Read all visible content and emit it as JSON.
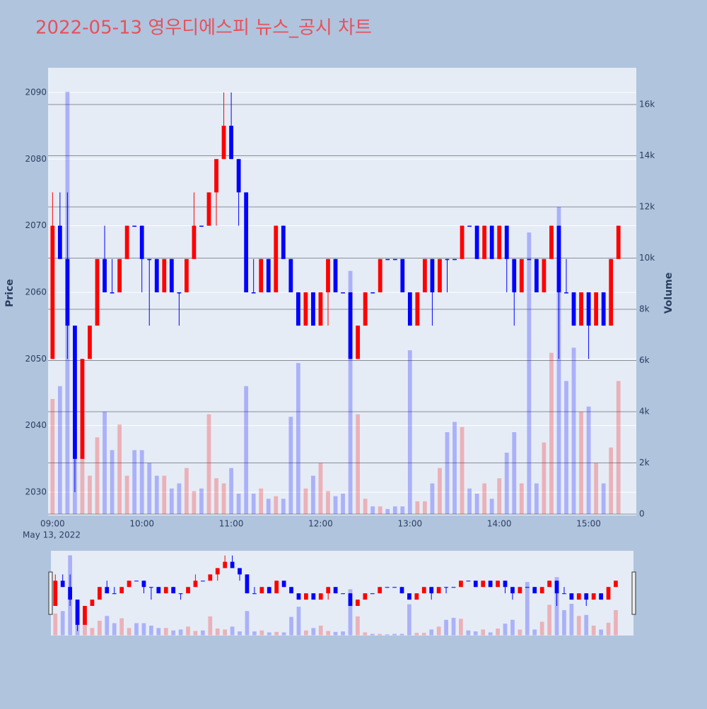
{
  "chart_data": {
    "type": "candlestick",
    "title": "2022-05-13 영우디에스피 뉴스_공시 차트",
    "ylabel": "Price",
    "y2label": "Volume",
    "date_label": "May 13, 2022",
    "increasing_color": "#ff0000",
    "decreasing_color": "#0000ff",
    "grid": true,
    "rangeslider": true,
    "x": [
      "09:00",
      "09:05",
      "09:10",
      "09:15",
      "09:20",
      "09:25",
      "09:30",
      "09:35",
      "09:40",
      "09:45",
      "09:50",
      "09:55",
      "10:00",
      "10:05",
      "10:10",
      "10:15",
      "10:20",
      "10:25",
      "10:30",
      "10:35",
      "10:40",
      "10:45",
      "10:50",
      "10:55",
      "11:00",
      "11:05",
      "11:10",
      "11:15",
      "11:20",
      "11:25",
      "11:30",
      "11:35",
      "11:40",
      "11:45",
      "11:50",
      "11:55",
      "12:00",
      "12:05",
      "12:10",
      "12:15",
      "12:20",
      "12:25",
      "12:30",
      "12:35",
      "12:40",
      "12:45",
      "12:50",
      "12:55",
      "13:00",
      "13:05",
      "13:10",
      "13:15",
      "13:20",
      "13:25",
      "13:30",
      "13:35",
      "13:40",
      "13:45",
      "13:50",
      "13:55",
      "14:00",
      "14:05",
      "14:10",
      "14:15",
      "14:20",
      "14:25",
      "14:30",
      "14:35",
      "14:40",
      "14:45",
      "14:50",
      "14:55",
      "15:00",
      "15:05",
      "15:10",
      "15:15",
      "15:20"
    ],
    "open": [
      2050,
      2070,
      2065,
      2055,
      2035,
      2050,
      2055,
      2065,
      2060,
      2060,
      2065,
      2070,
      2070,
      2065,
      2065,
      2060,
      2065,
      2060,
      2060,
      2065,
      2070,
      2070,
      2075,
      2080,
      2085,
      2080,
      2075,
      2060,
      2060,
      2065,
      2060,
      2070,
      2065,
      2060,
      2055,
      2060,
      2055,
      2060,
      2065,
      2060,
      2060,
      2050,
      2055,
      2060,
      2060,
      2065,
      2065,
      2065,
      2060,
      2055,
      2060,
      2065,
      2060,
      2065,
      2065,
      2065,
      2070,
      2070,
      2065,
      2070,
      2065,
      2070,
      2065,
      2060,
      2065,
      2065,
      2060,
      2065,
      2070,
      2060,
      2060,
      2055,
      2060,
      2055,
      2060,
      2055,
      2065
    ],
    "high": [
      2075,
      2075,
      2075,
      2055,
      2050,
      2055,
      2065,
      2070,
      2065,
      2065,
      2070,
      2070,
      2070,
      2065,
      2065,
      2065,
      2065,
      2060,
      2065,
      2075,
      2070,
      2075,
      2080,
      2090,
      2090,
      2080,
      2075,
      2065,
      2065,
      2065,
      2070,
      2070,
      2065,
      2060,
      2060,
      2060,
      2060,
      2065,
      2065,
      2060,
      2060,
      2055,
      2060,
      2060,
      2065,
      2065,
      2065,
      2065,
      2060,
      2060,
      2065,
      2065,
      2065,
      2065,
      2065,
      2070,
      2070,
      2070,
      2070,
      2070,
      2070,
      2070,
      2065,
      2065,
      2065,
      2065,
      2065,
      2070,
      2070,
      2065,
      2060,
      2060,
      2060,
      2060,
      2060,
      2065,
      2070
    ],
    "low": [
      2050,
      2065,
      2050,
      2030,
      2035,
      2050,
      2055,
      2060,
      2060,
      2060,
      2065,
      2070,
      2060,
      2055,
      2060,
      2060,
      2060,
      2055,
      2060,
      2065,
      2070,
      2070,
      2070,
      2080,
      2080,
      2070,
      2060,
      2060,
      2060,
      2060,
      2060,
      2065,
      2060,
      2055,
      2055,
      2055,
      2055,
      2055,
      2060,
      2060,
      2050,
      2050,
      2055,
      2060,
      2060,
      2065,
      2065,
      2060,
      2055,
      2055,
      2060,
      2055,
      2060,
      2060,
      2065,
      2065,
      2070,
      2065,
      2065,
      2065,
      2065,
      2060,
      2055,
      2060,
      2065,
      2060,
      2060,
      2065,
      2050,
      2060,
      2055,
      2055,
      2050,
      2055,
      2055,
      2055,
      2065
    ],
    "close": [
      2070,
      2065,
      2055,
      2035,
      2050,
      2055,
      2065,
      2060,
      2060,
      2065,
      2070,
      2070,
      2065,
      2065,
      2060,
      2065,
      2060,
      2060,
      2065,
      2070,
      2070,
      2075,
      2080,
      2085,
      2080,
      2075,
      2060,
      2060,
      2065,
      2060,
      2070,
      2065,
      2060,
      2055,
      2060,
      2055,
      2060,
      2065,
      2060,
      2060,
      2050,
      2055,
      2060,
      2060,
      2065,
      2065,
      2065,
      2060,
      2055,
      2060,
      2065,
      2060,
      2065,
      2065,
      2065,
      2070,
      2070,
      2065,
      2070,
      2065,
      2070,
      2065,
      2060,
      2065,
      2065,
      2060,
      2065,
      2070,
      2060,
      2060,
      2055,
      2060,
      2055,
      2060,
      2055,
      2065,
      2070
    ],
    "volume": [
      4500,
      5000,
      16500,
      6000,
      3500,
      1500,
      3000,
      4000,
      2500,
      3500,
      1500,
      2500,
      2500,
      2000,
      1500,
      1500,
      1000,
      1200,
      1800,
      900,
      1000,
      3900,
      1400,
      1200,
      1800,
      800,
      5000,
      800,
      1000,
      600,
      700,
      600,
      3800,
      5900,
      1000,
      1500,
      2000,
      900,
      700,
      800,
      9500,
      3900,
      600,
      300,
      300,
      200,
      300,
      300,
      6400,
      500,
      500,
      1200,
      1800,
      3200,
      3600,
      3400,
      1000,
      800,
      1200,
      600,
      1400,
      2400,
      3200,
      1200,
      11000,
      1200,
      2800,
      6300,
      12000,
      5200,
      6500,
      4000,
      4200,
      2000,
      1200,
      2600,
      5200
    ],
    "xlim": [
      "08:57",
      "15:32"
    ],
    "xticks": [
      "09:00",
      "10:00",
      "11:00",
      "12:00",
      "13:00",
      "14:00",
      "15:00"
    ],
    "ylim": [
      2026.5,
      2093.7
    ],
    "yticks": [
      2030,
      2040,
      2050,
      2060,
      2070,
      2080,
      2090
    ],
    "y2lim": [
      -55,
      17434
    ],
    "y2ticks": [
      0,
      {
        "value": 2000,
        "label": "2k"
      },
      {
        "value": 4000,
        "label": "4k"
      },
      {
        "value": 6000,
        "label": "6k"
      },
      {
        "value": 8000,
        "label": "8k"
      },
      {
        "value": 10000,
        "label": "10k"
      },
      {
        "value": 12000,
        "label": "12k"
      },
      {
        "value": 14000,
        "label": "14k"
      },
      {
        "value": 16000,
        "label": "16k"
      }
    ]
  }
}
